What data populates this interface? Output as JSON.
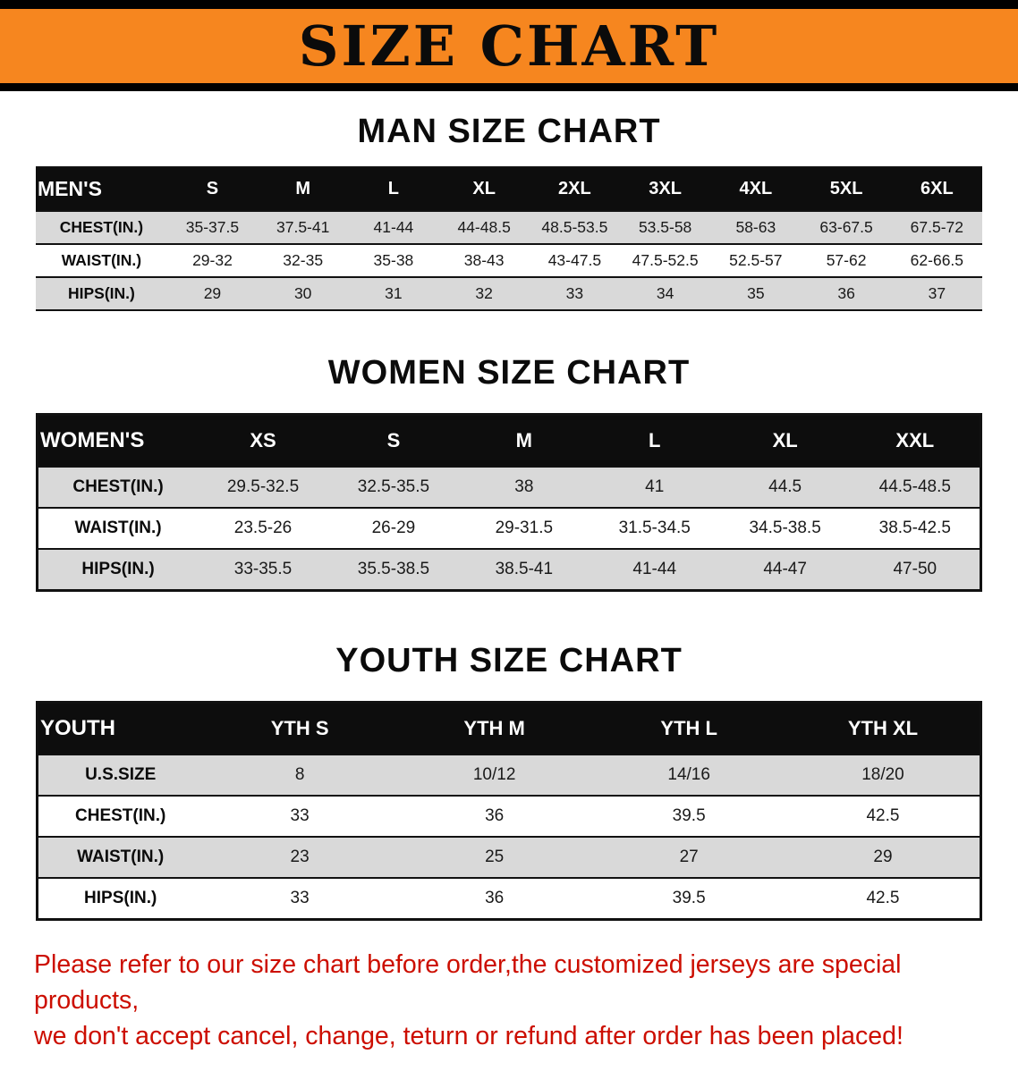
{
  "banner": {
    "title": "SIZE CHART",
    "background_color": "#F6861F",
    "bar_color": "#000000"
  },
  "sections": [
    {
      "id": "men",
      "title": "MAN SIZE CHART",
      "header": [
        "MEN'S",
        "S",
        "M",
        "L",
        "XL",
        "2XL",
        "3XL",
        "4XL",
        "5XL",
        "6XL"
      ],
      "rows": [
        [
          "CHEST(IN.)",
          "35-37.5",
          "37.5-41",
          "41-44",
          "44-48.5",
          "48.5-53.5",
          "53.5-58",
          "58-63",
          "63-67.5",
          "67.5-72"
        ],
        [
          "WAIST(IN.)",
          "29-32",
          "32-35",
          "35-38",
          "38-43",
          "43-47.5",
          "47.5-52.5",
          "52.5-57",
          "57-62",
          "62-66.5"
        ],
        [
          "HIPS(IN.)",
          "29",
          "30",
          "31",
          "32",
          "33",
          "34",
          "35",
          "36",
          "37"
        ]
      ]
    },
    {
      "id": "women",
      "title": "WOMEN SIZE CHART",
      "header": [
        "WOMEN'S",
        "XS",
        "S",
        "M",
        "L",
        "XL",
        "XXL"
      ],
      "rows": [
        [
          "CHEST(IN.)",
          "29.5-32.5",
          "32.5-35.5",
          "38",
          "41",
          "44.5",
          "44.5-48.5"
        ],
        [
          "WAIST(IN.)",
          "23.5-26",
          "26-29",
          "29-31.5",
          "31.5-34.5",
          "34.5-38.5",
          "38.5-42.5"
        ],
        [
          "HIPS(IN.)",
          "33-35.5",
          "35.5-38.5",
          "38.5-41",
          "41-44",
          "44-47",
          "47-50"
        ]
      ]
    },
    {
      "id": "youth",
      "title": "YOUTH SIZE CHART",
      "header": [
        "YOUTH",
        "YTH S",
        "YTH M",
        "YTH L",
        "YTH XL"
      ],
      "rows": [
        [
          "U.S.SIZE",
          "8",
          "10/12",
          "14/16",
          "18/20"
        ],
        [
          "CHEST(IN.)",
          "33",
          "36",
          "39.5",
          "42.5"
        ],
        [
          "WAIST(IN.)",
          "23",
          "25",
          "27",
          "29"
        ],
        [
          "HIPS(IN.)",
          "33",
          "36",
          "39.5",
          "42.5"
        ]
      ]
    }
  ],
  "footer": {
    "color": "#CC0E00",
    "lines": [
      "Please refer to our size chart before order,the customized jerseys are special products,",
      "we don't accept cancel, change, teturn or refund after order has been placed!"
    ]
  }
}
